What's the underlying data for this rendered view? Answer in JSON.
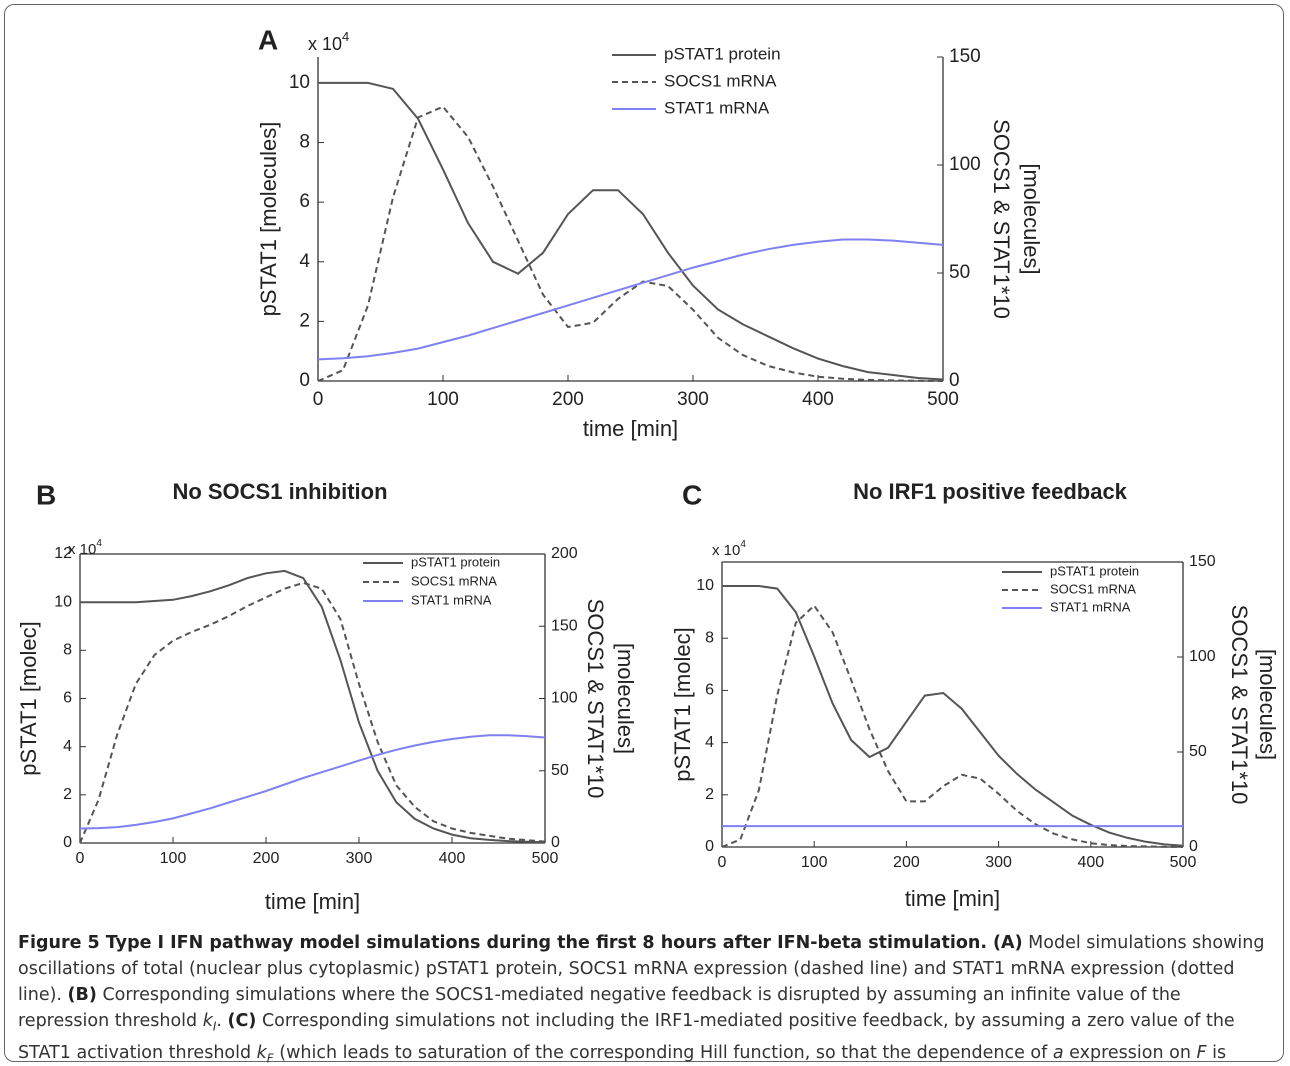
{
  "chart_data": [
    {
      "type": "line",
      "panel_label": "A",
      "ylabel_multiplier": "x 10",
      "ylabel_multiplier_exponent": "4",
      "xlabel": "time [min]",
      "ylabel": "pSTAT1 [molecules]",
      "y2label": [
        "SOCS1 & STAT1*10",
        "[molecules]"
      ],
      "x": [
        0,
        20,
        40,
        60,
        80,
        100,
        120,
        140,
        160,
        180,
        200,
        220,
        240,
        260,
        280,
        300,
        320,
        340,
        360,
        380,
        400,
        420,
        440,
        460,
        480,
        500
      ],
      "xlim": [
        0,
        500
      ],
      "xticks": [
        0,
        100,
        200,
        300,
        400,
        500
      ],
      "ylim": [
        0,
        10.87
      ],
      "yticks": [
        0,
        2,
        4,
        6,
        8,
        10
      ],
      "y2lim": [
        0,
        150
      ],
      "y2ticks": [
        0,
        50,
        100,
        150
      ],
      "box": false,
      "series": [
        {
          "name": "pSTAT1 protein",
          "color": "#555555",
          "dash": "solid",
          "axis": "y",
          "values": [
            10,
            10,
            10,
            9.8,
            8.8,
            7.1,
            5.3,
            4.0,
            3.6,
            4.3,
            5.6,
            6.4,
            6.4,
            5.6,
            4.3,
            3.2,
            2.4,
            1.9,
            1.5,
            1.1,
            0.75,
            0.5,
            0.3,
            0.2,
            0.1,
            0.05
          ]
        },
        {
          "name": "SOCS1 mRNA",
          "color": "#555555",
          "dash": "dashed",
          "axis": "y2",
          "values": [
            0,
            5,
            35,
            85,
            122,
            127,
            113,
            90,
            65,
            40,
            25,
            27,
            38,
            46,
            44,
            33,
            20,
            12,
            7,
            4,
            2,
            1,
            0.5,
            0.3,
            0.1,
            0
          ]
        },
        {
          "name": "STAT1 mRNA",
          "color": "#7f80f2",
          "dash": "solid",
          "axis": "y2",
          "values": [
            10,
            10.5,
            11.5,
            13,
            15,
            18,
            21,
            24.5,
            28,
            31.5,
            35,
            38.5,
            42,
            45.5,
            49,
            52.5,
            55.5,
            58.5,
            61,
            63,
            64.5,
            65.5,
            65.5,
            65,
            64,
            63
          ]
        }
      ]
    },
    {
      "type": "line",
      "panel_label": "B",
      "title": "No SOCS1 inhibition",
      "ylabel_multiplier": "x 10",
      "ylabel_multiplier_exponent": "4",
      "xlabel": "time [min]",
      "ylabel": "pSTAT1 [molec]",
      "y2label": [
        "SOCS1 & STAT1*10",
        "[molecules]"
      ],
      "x": [
        0,
        20,
        40,
        60,
        80,
        100,
        120,
        140,
        160,
        180,
        200,
        220,
        240,
        260,
        280,
        300,
        320,
        340,
        360,
        380,
        400,
        420,
        440,
        460,
        480,
        500
      ],
      "xlim": [
        0,
        500
      ],
      "xticks": [
        0,
        100,
        200,
        300,
        400,
        500
      ],
      "ylim": [
        0,
        12
      ],
      "yticks": [
        0,
        2,
        4,
        6,
        8,
        10,
        12
      ],
      "y2lim": [
        0,
        200
      ],
      "y2ticks": [
        0,
        50,
        100,
        150,
        200
      ],
      "box": true,
      "series": [
        {
          "name": "pSTAT1 protein",
          "color": "#555555",
          "dash": "solid",
          "axis": "y",
          "values": [
            10,
            10,
            10,
            10,
            10.05,
            10.1,
            10.25,
            10.45,
            10.7,
            11.0,
            11.2,
            11.3,
            11.0,
            9.8,
            7.6,
            5.0,
            3.0,
            1.7,
            1.0,
            0.6,
            0.35,
            0.2,
            0.13,
            0.08,
            0.05,
            0.03
          ]
        },
        {
          "name": "SOCS1 mRNA",
          "color": "#555555",
          "dash": "dashed",
          "axis": "y2",
          "values": [
            0,
            30,
            75,
            110,
            130,
            140,
            146,
            151,
            157,
            164,
            170,
            176,
            180,
            176,
            155,
            110,
            70,
            40,
            25,
            15,
            10,
            7,
            5,
            3,
            2,
            1
          ]
        },
        {
          "name": "STAT1 mRNA",
          "color": "#7f80f2",
          "dash": "solid",
          "axis": "y2",
          "values": [
            10,
            10.3,
            11,
            12.5,
            14.5,
            17,
            20.5,
            24,
            28,
            32,
            36,
            40.5,
            45,
            49,
            53,
            57,
            61,
            64.5,
            67.5,
            70,
            72,
            73.5,
            74.5,
            74.5,
            74,
            73
          ]
        }
      ]
    },
    {
      "type": "line",
      "panel_label": "C",
      "title": "No IRF1 positive feedback",
      "ylabel_multiplier": "x 10",
      "ylabel_multiplier_exponent": "4",
      "xlabel": "time [min]",
      "ylabel": "pSTAT1 [molec]",
      "y2label": [
        "SOCS1 & STAT1*10",
        "[molecules]"
      ],
      "x": [
        0,
        20,
        40,
        60,
        80,
        100,
        120,
        140,
        160,
        180,
        200,
        220,
        240,
        260,
        280,
        300,
        320,
        340,
        360,
        380,
        400,
        420,
        440,
        460,
        480,
        500
      ],
      "xlim": [
        0,
        500
      ],
      "xticks": [
        0,
        100,
        200,
        300,
        400,
        500
      ],
      "ylim": [
        0,
        10.92
      ],
      "yticks": [
        0,
        2,
        4,
        6,
        8,
        10
      ],
      "y2lim": [
        0,
        150
      ],
      "y2ticks": [
        0,
        50,
        100,
        150
      ],
      "box": true,
      "series": [
        {
          "name": "pSTAT1 protein",
          "color": "#555555",
          "dash": "solid",
          "axis": "y",
          "values": [
            10,
            10,
            10,
            9.9,
            9.0,
            7.3,
            5.5,
            4.1,
            3.45,
            3.8,
            4.8,
            5.8,
            5.9,
            5.3,
            4.4,
            3.5,
            2.8,
            2.2,
            1.7,
            1.2,
            0.85,
            0.55,
            0.35,
            0.2,
            0.1,
            0.05
          ]
        },
        {
          "name": "SOCS1 mRNA",
          "color": "#555555",
          "dash": "dashed",
          "axis": "y2",
          "values": [
            0,
            4,
            30,
            80,
            118,
            127,
            113,
            88,
            62,
            40,
            24,
            24,
            32,
            38,
            36,
            28,
            19,
            12,
            7,
            4,
            2,
            1,
            0.5,
            0.3,
            0.1,
            0
          ]
        },
        {
          "name": "STAT1 mRNA",
          "color": "#7f80f2",
          "dash": "solid",
          "axis": "y2",
          "values": [
            11,
            11,
            11,
            11,
            11,
            11,
            11,
            11,
            11,
            11,
            11,
            11,
            11,
            11,
            11,
            11,
            11,
            11,
            11,
            11,
            11,
            11,
            11,
            11,
            11,
            11
          ]
        }
      ]
    }
  ],
  "caption": [
    {
      "text": "Figure 5 Type I IFN pathway model simulations during the first 8 hours after IFN-beta stimulation. (A)",
      "style": "bold"
    },
    {
      "text": " Model simulations showing oscillations of total (nuclear plus cytoplasmic) pSTAT1 protein, SOCS1 mRNA expression (dashed line) and STAT1 mRNA expression (dotted line). ",
      "style": "normal"
    },
    {
      "text": "(B)",
      "style": "bold"
    },
    {
      "text": " Corresponding simulations where the SOCS1-mediated negative feedback is disrupted by assuming an infinite value of the repression threshold ",
      "style": "normal"
    },
    {
      "text": "k",
      "style": "italic"
    },
    {
      "text": "I",
      "style": "sub"
    },
    {
      "text": ". ",
      "style": "normal"
    },
    {
      "text": "(C)",
      "style": "bold"
    },
    {
      "text": " Corresponding simulations not including the IRF1-mediated positive feedback, by assuming a zero value of the STAT1 activation threshold ",
      "style": "normal"
    },
    {
      "text": "k",
      "style": "italic"
    },
    {
      "text": "F",
      "style": "sub"
    },
    {
      "text": " (which leads to saturation of the corresponding Hill function, so that the dependence of ",
      "style": "normal"
    },
    {
      "text": "a",
      "style": "italic"
    },
    {
      "text": " expression on ",
      "style": "normal"
    },
    {
      "text": "F",
      "style": "italic"
    },
    {
      "text": " is removed).",
      "style": "normal"
    }
  ]
}
